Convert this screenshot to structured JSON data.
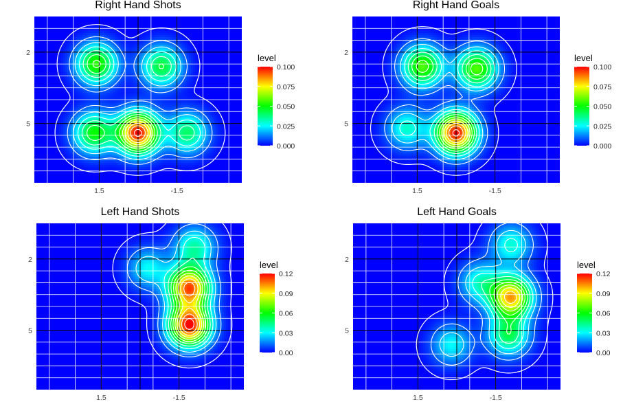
{
  "chart_data": [
    {
      "type": "contour",
      "title": "Right Hand Shots",
      "y_ticks": [
        "2",
        "5"
      ],
      "x_ticks": [
        "1.5",
        "-1.5"
      ],
      "legend": {
        "title": "level",
        "ticks": [
          "0.100",
          "0.075",
          "0.050",
          "0.025",
          "0.000"
        ],
        "range": [
          0,
          0.1
        ]
      },
      "density_peaks": [
        {
          "x": 0.0,
          "y": 5.4,
          "level": 0.1
        },
        {
          "x": 1.7,
          "y": 5.4,
          "level": 0.05
        },
        {
          "x": -1.9,
          "y": 5.4,
          "level": 0.04
        },
        {
          "x": 1.6,
          "y": 2.5,
          "level": 0.055
        },
        {
          "x": -0.9,
          "y": 2.6,
          "level": 0.045
        }
      ]
    },
    {
      "type": "contour",
      "title": "Right Hand Goals",
      "y_ticks": [
        "2",
        "5"
      ],
      "x_ticks": [
        "1.5",
        "-1.5"
      ],
      "legend": {
        "title": "level",
        "ticks": [
          "0.100",
          "0.075",
          "0.050",
          "0.025",
          "0.000"
        ],
        "range": [
          0,
          0.1
        ]
      },
      "density_peaks": [
        {
          "x": 0.0,
          "y": 5.4,
          "level": 0.1
        },
        {
          "x": 1.3,
          "y": 2.6,
          "level": 0.058
        },
        {
          "x": -0.8,
          "y": 2.7,
          "level": 0.058
        },
        {
          "x": 1.9,
          "y": 5.2,
          "level": 0.03
        }
      ]
    },
    {
      "type": "contour",
      "title": "Left Hand Shots",
      "y_ticks": [
        "2",
        "5"
      ],
      "x_ticks": [
        "1.5",
        "-1.5"
      ],
      "legend": {
        "title": "level",
        "ticks": [
          "0.12",
          "0.09",
          "0.06",
          "0.03",
          "0.00"
        ],
        "range": [
          0,
          0.12
        ]
      },
      "density_peaks": [
        {
          "x": -1.9,
          "y": 3.2,
          "level": 0.11
        },
        {
          "x": -1.9,
          "y": 4.8,
          "level": 0.12
        },
        {
          "x": -0.3,
          "y": 2.4,
          "level": 0.03
        },
        {
          "x": -2.1,
          "y": 1.5,
          "level": 0.04
        }
      ]
    },
    {
      "type": "contour",
      "title": "Left Hand Goals",
      "y_ticks": [
        "2",
        "5"
      ],
      "x_ticks": [
        "1.5",
        "-1.5"
      ],
      "legend": {
        "title": "level",
        "ticks": [
          "0.12",
          "0.09",
          "0.06",
          "0.03",
          "0.00"
        ],
        "range": [
          0,
          0.12
        ]
      },
      "density_peaks": [
        {
          "x": -2.1,
          "y": 3.6,
          "level": 0.1
        },
        {
          "x": -2.0,
          "y": 5.2,
          "level": 0.05
        },
        {
          "x": -0.9,
          "y": 3.0,
          "level": 0.035
        },
        {
          "x": 0.2,
          "y": 5.6,
          "level": 0.03
        },
        {
          "x": -2.1,
          "y": 1.4,
          "level": 0.035
        }
      ]
    }
  ]
}
